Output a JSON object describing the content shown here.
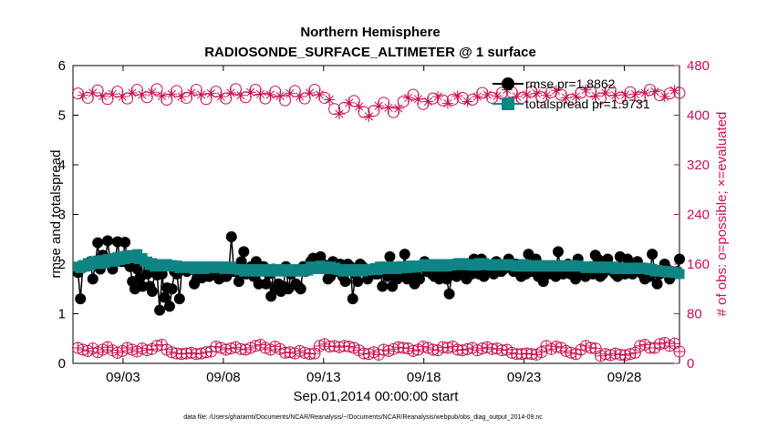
{
  "chart_data": {
    "type": "line",
    "title_line1": "Northern Hemisphere",
    "title_line2": "RADIOSONDE_SURFACE_ALTIMETER @ 1 surface",
    "xlabel": "Sep.01,2014 00:00:00 start",
    "ylabel": "rmse and totalspread",
    "ylabel_right": "# of obs: o=possible; ×=evaluated",
    "ylim": [
      0,
      6
    ],
    "ylim_right": [
      0,
      480
    ],
    "xlim": [
      0.5,
      30.75
    ],
    "x_ticks": [
      3,
      8,
      13,
      18,
      23,
      28
    ],
    "x_tick_labels": [
      "09/03",
      "09/08",
      "09/13",
      "09/18",
      "09/23",
      "09/28"
    ],
    "y_ticks": [
      0,
      1,
      2,
      3,
      4,
      5,
      6
    ],
    "y_tick_labels": [
      "0",
      "1",
      "2",
      "3",
      "4",
      "5",
      "6"
    ],
    "y_ticks_right": [
      0,
      80,
      160,
      240,
      320,
      400,
      480
    ],
    "y_tick_labels_right": [
      "0",
      "80",
      "160",
      "240",
      "320",
      "400",
      "480"
    ],
    "legend": [
      "rmse pr=1.8862",
      "totalspread pr=1.9731"
    ],
    "legend_position": "top-right",
    "colors": {
      "rmse": "#000000",
      "totalspread": "#0f8484",
      "obs": "#c8104e"
    },
    "series": [
      {
        "name": "rmse",
        "values": [
          1.83,
          1.3,
          1.97,
          1.95,
          1.97,
          2.05,
          1.7,
          2.0,
          2.43,
          1.9,
          2.18,
          2.02,
          2.47,
          2.08,
          1.9,
          2.05,
          2.45,
          2.05,
          2.05,
          2.44,
          2.05,
          1.95,
          1.65,
          1.5,
          1.9,
          1.72,
          1.55,
          2.05,
          1.8,
          1.55,
          1.45,
          1.85,
          1.78,
          1.07,
          1.8,
          1.33,
          1.52,
          1.15,
          1.5,
          1.85,
          1.8,
          1.3,
          1.9,
          1.9,
          1.85,
          1.9,
          1.9,
          1.6,
          1.7,
          1.85,
          1.72,
          1.75,
          1.8,
          1.75,
          1.85,
          1.8,
          1.85,
          1.7,
          1.75,
          1.75,
          1.75,
          1.9,
          2.55,
          1.85,
          1.85,
          1.65,
          2.05,
          2.25,
          1.8,
          1.85,
          1.95,
          1.75,
          2.05,
          1.6,
          1.9,
          1.95,
          1.6,
          1.8,
          1.35,
          1.9,
          1.5,
          1.6,
          1.45,
          1.55,
          1.95,
          1.5,
          1.8,
          1.85,
          1.6,
          1.55,
          1.5,
          1.95,
          1.85,
          1.9,
          2.05,
          2.12,
          2.0,
          1.95,
          2.15,
          2.0,
          1.9,
          1.7,
          1.75,
          2.05,
          1.95,
          1.85,
          2.0,
          1.75,
          1.65,
          2.0,
          1.95,
          1.3,
          1.8,
          1.65,
          2.0,
          1.95,
          1.85,
          1.7,
          1.8,
          1.9,
          1.8,
          1.8,
          1.9,
          1.55,
          1.85,
          1.75,
          2.15,
          1.55,
          1.85,
          1.7,
          1.95,
          1.8,
          2.2,
          1.7,
          1.75,
          1.85,
          1.6,
          1.9,
          1.7,
          1.95,
          2.05,
          1.85,
          1.95,
          1.8,
          1.75,
          1.85,
          1.7,
          1.9,
          1.85,
          1.7,
          1.4,
          1.8,
          2.0,
          1.75,
          1.85,
          1.9,
          1.95,
          1.7,
          1.85,
          1.8,
          2.1,
          1.9,
          1.8,
          2.1,
          1.75,
          1.95,
          1.9,
          1.85,
          1.8,
          2.05,
          1.9,
          1.85,
          1.9,
          1.95,
          2.1,
          1.95,
          1.85,
          2.0,
          1.85,
          1.75,
          1.8,
          1.8,
          2.2,
          1.85,
          1.85,
          2.1,
          1.75,
          1.85,
          1.65,
          1.8,
          1.8,
          1.9,
          1.8,
          1.75,
          2.25,
          1.85,
          1.8,
          1.9,
          2.0,
          1.8,
          1.85,
          1.7,
          2.1,
          1.9,
          1.85,
          1.75,
          1.8,
          1.95,
          1.8,
          2.18,
          2.1,
          1.75,
          1.8,
          1.95,
          2.1,
          1.9,
          1.85,
          1.8,
          1.75,
          2.15,
          1.85,
          1.8,
          2.1,
          1.95,
          1.8,
          1.95,
          2.05,
          1.9,
          1.8,
          1.7,
          1.8,
          1.75,
          2.2,
          1.85,
          1.6,
          1.8,
          1.85,
          2.0,
          1.9,
          1.7,
          1.85,
          1.8,
          1.85,
          2.1
        ]
      },
      {
        "name": "totalspread",
        "values": [
          1.95,
          1.92,
          1.98,
          1.95,
          2.02,
          1.98,
          2.05,
          2.0,
          2.07,
          2.0,
          2.08,
          2.02,
          2.1,
          2.05,
          2.12,
          2.05,
          2.14,
          2.08,
          2.16,
          2.1,
          2.18,
          2.12,
          2.18,
          2.15,
          2.2,
          2.1,
          2.12,
          2.05,
          2.05,
          1.98,
          2.02,
          1.95,
          2.0,
          1.98,
          1.97,
          1.95,
          2.0,
          1.97,
          1.98,
          1.95,
          1.97,
          1.92,
          1.95,
          1.93,
          1.95,
          1.92,
          1.95,
          1.9,
          1.95,
          1.93,
          1.95,
          1.9,
          1.95,
          1.93,
          1.95,
          1.92,
          1.95,
          1.93,
          1.95,
          1.9,
          1.95,
          1.93,
          1.95,
          1.9,
          1.9,
          1.88,
          1.9,
          1.85,
          1.88,
          1.85,
          1.9,
          1.85,
          1.88,
          1.85,
          1.9,
          1.85,
          1.88,
          1.85,
          1.9,
          1.87,
          1.9,
          1.85,
          1.88,
          1.85,
          1.9,
          1.85,
          1.87,
          1.85,
          1.9,
          1.85,
          1.88,
          1.85,
          1.9,
          1.87,
          1.95,
          1.9,
          1.95,
          1.9,
          1.97,
          1.92,
          1.95,
          1.9,
          1.95,
          1.9,
          1.93,
          1.88,
          1.9,
          1.85,
          1.88,
          1.85,
          1.9,
          1.87,
          1.9,
          1.85,
          1.88,
          1.85,
          1.9,
          1.87,
          1.9,
          1.88,
          1.92,
          1.88,
          1.95,
          1.9,
          1.95,
          1.9,
          1.95,
          1.92,
          1.95,
          1.9,
          1.95,
          1.92,
          1.95,
          1.92,
          1.97,
          1.93,
          1.97,
          1.93,
          1.97,
          1.95,
          2.0,
          1.95,
          2.0,
          1.95,
          1.98,
          1.95,
          2.0,
          1.95,
          1.98,
          1.95,
          2.0,
          1.97,
          2.0,
          1.98,
          2.02,
          1.98,
          2.02,
          1.98,
          2.0,
          1.97,
          2.0,
          1.97,
          2.02,
          1.98,
          2.02,
          1.98,
          2.0,
          1.97,
          2.0,
          1.97,
          2.0,
          1.98,
          2.0,
          1.97,
          2.0,
          1.97,
          1.98,
          1.95,
          1.98,
          1.95,
          2.0,
          1.95,
          1.97,
          1.95,
          1.98,
          1.95,
          1.97,
          1.95,
          1.98,
          1.95,
          1.97,
          1.95,
          1.98,
          1.95,
          1.97,
          1.95,
          1.98,
          1.95,
          1.97,
          1.95,
          1.98,
          1.95,
          1.97,
          1.95,
          1.95,
          1.92,
          1.95,
          1.93,
          1.95,
          1.92,
          1.95,
          1.93,
          1.95,
          1.92,
          1.95,
          1.93,
          1.95,
          1.9,
          1.92,
          1.9,
          1.93,
          1.9,
          1.92,
          1.9,
          1.93,
          1.9,
          1.92,
          1.9,
          1.93,
          1.9,
          1.92,
          1.88,
          1.9,
          1.85,
          1.88,
          1.85,
          1.87,
          1.84,
          1.86,
          1.83,
          1.85,
          1.82,
          1.84,
          1.8
        ]
      },
      {
        "name": "obs_possible",
        "axis": "right",
        "values": [
          25,
          22,
          20,
          24,
          18,
          22,
          26,
          21,
          17,
          20,
          25,
          22,
          19,
          24,
          21,
          23,
          28,
          30,
          22,
          18,
          16,
          15,
          16,
          17,
          15,
          16,
          18,
          19,
          27,
          25,
          22,
          24,
          26,
          23,
          22,
          25,
          28,
          30,
          25,
          22,
          27,
          23,
          17,
          18,
          16,
          20,
          17,
          15,
          16,
          28,
          31,
          27,
          28,
          26,
          28,
          27,
          25,
          21,
          16,
          15,
          18,
          14,
          22,
          20,
          23,
          26,
          25,
          24,
          20,
          22,
          27,
          25,
          22,
          21,
          26,
          25,
          27,
          22,
          21,
          23,
          25,
          21,
          24,
          26,
          23,
          24,
          21,
          22,
          17,
          15,
          15,
          16,
          15,
          14,
          18,
          28,
          23,
          27,
          25,
          20,
          17,
          15,
          22,
          28,
          25,
          24,
          12,
          15,
          13,
          16,
          14,
          13,
          15,
          17,
          28,
          30,
          25,
          25,
          31,
          33,
          28,
          32,
          19
        ]
      },
      {
        "name": "obs_evaluated",
        "axis": "right",
        "values": [
          435,
          432,
          428,
          436,
          440,
          431,
          426,
          434,
          438,
          430,
          427,
          436,
          441,
          433,
          429,
          437,
          442,
          431,
          425,
          434,
          439,
          430,
          428,
          436,
          441,
          433,
          426,
          435,
          438,
          430,
          427,
          436,
          442,
          432,
          429,
          437,
          441,
          434,
          427,
          433,
          438,
          431,
          424,
          435,
          439,
          430,
          427,
          436,
          441,
          433,
          428,
          425,
          410,
          402,
          412,
          420,
          423,
          414,
          405,
          398,
          407,
          415,
          420,
          412,
          405,
          411,
          422,
          428,
          433,
          426,
          418,
          422,
          427,
          430,
          424,
          419,
          425,
          431,
          428,
          422,
          425,
          430,
          436,
          433,
          428,
          431,
          436,
          441,
          437,
          430,
          428,
          433,
          438,
          435,
          429,
          432,
          437,
          440,
          433,
          428,
          425,
          430,
          436,
          441,
          438,
          431,
          427,
          436,
          440,
          432,
          428,
          433,
          437,
          434,
          429,
          436,
          441,
          438,
          432,
          430,
          435,
          440,
          436
        ]
      }
    ],
    "footnote": "data file: /Users/gharamti/Documents/NCAR/Reanalysis/~/Documents/NCAR/Reanalysis/webpub/obs_diag_output_2014-09.nc"
  }
}
